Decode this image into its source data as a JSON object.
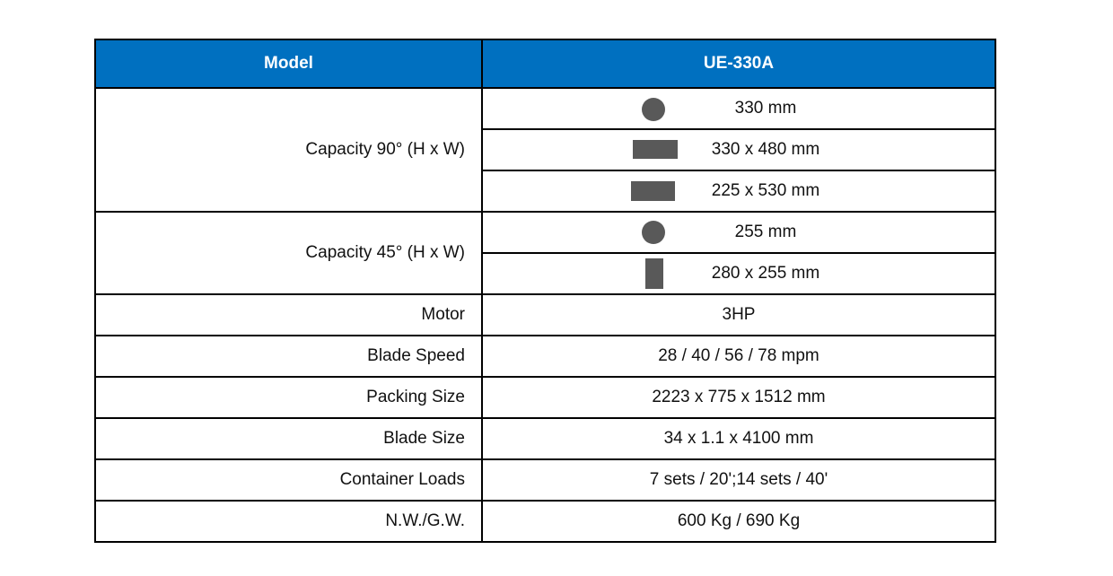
{
  "table": {
    "header": [
      "Model",
      "UE-330A"
    ],
    "rows": [
      {
        "label": "Capacity 90° (H x W)",
        "values": [
          "330 mm",
          "330 x 480 mm",
          "225 x 530 mm"
        ]
      },
      {
        "label": "Capacity 45° (H x W)",
        "values": [
          "255 mm",
          "280 x 255 mm"
        ]
      },
      {
        "label": "Motor",
        "values": [
          "3HP"
        ]
      },
      {
        "label": "Blade Speed",
        "values": [
          "28 / 40 / 56 / 78 mpm"
        ]
      },
      {
        "label": "Packing Size",
        "values": [
          "2223 x 775 x 1512 mm"
        ]
      },
      {
        "label": "Blade Size",
        "values": [
          "34 x 1.1 x 4100 mm"
        ]
      },
      {
        "label": "Container Loads",
        "values": [
          "7 sets / 20';14 sets / 40'"
        ]
      },
      {
        "label": "N.W./G.W.",
        "values": [
          "600 Kg / 690 Kg"
        ]
      }
    ]
  }
}
